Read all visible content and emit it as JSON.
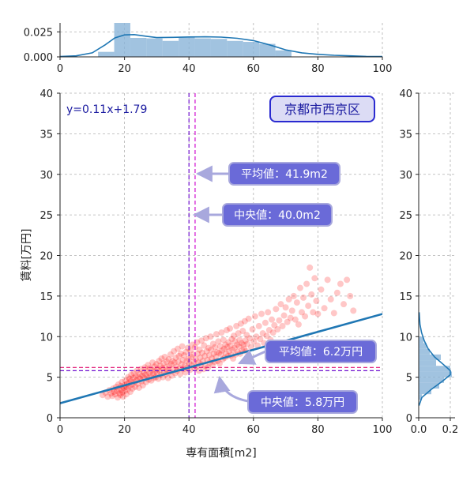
{
  "chart_data": {
    "type": "scatter",
    "title": "京都市西京区",
    "xlabel": "専有面積[m2]",
    "ylabel": "賃料[万円]",
    "xlim": [
      0,
      100
    ],
    "ylim": [
      0,
      40
    ],
    "xticks": [
      "0",
      "20",
      "40",
      "60",
      "80",
      "100"
    ],
    "yticks": [
      "0",
      "5",
      "10",
      "15",
      "20",
      "25",
      "30",
      "35",
      "40"
    ],
    "grid": true,
    "regression": {
      "label": "y=0.11x+1.79",
      "slope": 0.11,
      "intercept": 1.79,
      "color": "#1f77b4"
    },
    "mean_x": {
      "value": 41.9,
      "label": "平均値：41.9m2"
    },
    "median_x": {
      "value": 40.0,
      "label": "中央値：40.0m2"
    },
    "mean_y": {
      "value": 6.2,
      "label": "平均値：6.2万円"
    },
    "median_y": {
      "value": 5.8,
      "label": "中央値：5.8万円"
    },
    "point_color": "#ff0000",
    "top_hist": {
      "yticks": [
        "0.000",
        "0.025"
      ],
      "ylim": [
        0,
        0.034
      ],
      "bins": [
        {
          "x0": 11.8,
          "x1": 16.8,
          "density": 0.005
        },
        {
          "x0": 16.8,
          "x1": 21.8,
          "density": 0.034
        },
        {
          "x0": 21.8,
          "x1": 26.8,
          "density": 0.019
        },
        {
          "x0": 26.8,
          "x1": 31.8,
          "density": 0.0185
        },
        {
          "x0": 31.8,
          "x1": 36.8,
          "density": 0.016
        },
        {
          "x0": 36.8,
          "x1": 41.8,
          "density": 0.0198
        },
        {
          "x0": 41.8,
          "x1": 46.8,
          "density": 0.0185
        },
        {
          "x0": 46.8,
          "x1": 51.8,
          "density": 0.018
        },
        {
          "x0": 51.8,
          "x1": 56.8,
          "density": 0.016
        },
        {
          "x0": 56.8,
          "x1": 61.8,
          "density": 0.015
        },
        {
          "x0": 61.8,
          "x1": 66.8,
          "density": 0.013
        },
        {
          "x0": 66.8,
          "x1": 71.8,
          "density": 0.0065
        }
      ],
      "kde": [
        [
          0,
          0.0003
        ],
        [
          5,
          0.001
        ],
        [
          10,
          0.004
        ],
        [
          14,
          0.012
        ],
        [
          17,
          0.019
        ],
        [
          20,
          0.022
        ],
        [
          23,
          0.0223
        ],
        [
          27,
          0.0205
        ],
        [
          30,
          0.0193
        ],
        [
          35,
          0.0195
        ],
        [
          40,
          0.0199
        ],
        [
          45,
          0.0201
        ],
        [
          50,
          0.0198
        ],
        [
          55,
          0.0186
        ],
        [
          60,
          0.0163
        ],
        [
          65,
          0.012
        ],
        [
          70,
          0.007
        ],
        [
          75,
          0.004
        ],
        [
          80,
          0.0025
        ],
        [
          85,
          0.0016
        ],
        [
          90,
          0.001
        ],
        [
          95,
          0.0005
        ],
        [
          100,
          0.0003
        ]
      ]
    },
    "right_hist": {
      "xticks": [
        "0.0",
        "0.2"
      ],
      "xlim": [
        0,
        0.23
      ],
      "bins": [
        {
          "y0": 2.2,
          "y1": 2.9,
          "density": 0.02
        },
        {
          "y0": 2.9,
          "y1": 3.6,
          "density": 0.08
        },
        {
          "y0": 3.6,
          "y1": 4.3,
          "density": 0.13
        },
        {
          "y0": 4.3,
          "y1": 5.0,
          "density": 0.16
        },
        {
          "y0": 5.0,
          "y1": 5.7,
          "density": 0.21
        },
        {
          "y0": 5.7,
          "y1": 6.4,
          "density": 0.2
        },
        {
          "y0": 6.4,
          "y1": 7.1,
          "density": 0.11
        },
        {
          "y0": 7.1,
          "y1": 7.8,
          "density": 0.14
        },
        {
          "y0": 7.8,
          "y1": 8.5,
          "density": 0.07
        },
        {
          "y0": 8.5,
          "y1": 9.2,
          "density": 0.05
        },
        {
          "y0": 9.2,
          "y1": 10.0,
          "density": 0.03
        }
      ],
      "kde": [
        [
          1.5,
          0.002
        ],
        [
          2.5,
          0.02
        ],
        [
          3.5,
          0.08
        ],
        [
          4.5,
          0.15
        ],
        [
          5.3,
          0.2
        ],
        [
          5.8,
          0.2
        ],
        [
          6.5,
          0.16
        ],
        [
          7.5,
          0.1
        ],
        [
          8.5,
          0.06
        ],
        [
          9.5,
          0.035
        ],
        [
          10.5,
          0.018
        ],
        [
          11.5,
          0.008
        ],
        [
          13,
          0.003
        ]
      ]
    },
    "points": [
      [
        13.2,
        2.8
      ],
      [
        14.1,
        3.1
      ],
      [
        14.8,
        2.6
      ],
      [
        15.3,
        3.4
      ],
      [
        15.8,
        3.0
      ],
      [
        16.2,
        2.7
      ],
      [
        16.5,
        3.6
      ],
      [
        16.8,
        3.2
      ],
      [
        17.1,
        2.9
      ],
      [
        17.4,
        3.8
      ],
      [
        17.6,
        3.3
      ],
      [
        17.9,
        2.5
      ],
      [
        18.1,
        4.1
      ],
      [
        18.3,
        3.5
      ],
      [
        18.5,
        3.0
      ],
      [
        18.7,
        2.8
      ],
      [
        18.9,
        3.9
      ],
      [
        19.1,
        3.4
      ],
      [
        19.2,
        4.4
      ],
      [
        19.4,
        3.1
      ],
      [
        19.6,
        2.6
      ],
      [
        19.8,
        3.7
      ],
      [
        20.0,
        4.0
      ],
      [
        20.1,
        3.3
      ],
      [
        20.3,
        4.6
      ],
      [
        20.5,
        3.8
      ],
      [
        20.6,
        2.9
      ],
      [
        20.8,
        4.2
      ],
      [
        21.0,
        3.5
      ],
      [
        21.1,
        5.0
      ],
      [
        21.3,
        4.3
      ],
      [
        21.5,
        3.9
      ],
      [
        21.6,
        4.8
      ],
      [
        21.8,
        3.2
      ],
      [
        22.0,
        4.5
      ],
      [
        22.1,
        5.3
      ],
      [
        22.3,
        4.1
      ],
      [
        22.5,
        3.6
      ],
      [
        22.7,
        4.9
      ],
      [
        22.9,
        5.5
      ],
      [
        23.1,
        4.4
      ],
      [
        23.3,
        3.8
      ],
      [
        23.5,
        5.1
      ],
      [
        23.7,
        4.6
      ],
      [
        23.9,
        5.8
      ],
      [
        24.1,
        4.2
      ],
      [
        24.3,
        5.0
      ],
      [
        24.5,
        3.7
      ],
      [
        24.7,
        5.4
      ],
      [
        24.9,
        4.8
      ],
      [
        25.1,
        6.0
      ],
      [
        25.3,
        4.5
      ],
      [
        25.5,
        5.2
      ],
      [
        25.7,
        4.0
      ],
      [
        25.9,
        5.6
      ],
      [
        26.1,
        4.9
      ],
      [
        26.3,
        6.2
      ],
      [
        26.5,
        5.3
      ],
      [
        26.7,
        4.4
      ],
      [
        26.9,
        5.8
      ],
      [
        27.1,
        5.0
      ],
      [
        27.3,
        6.5
      ],
      [
        27.5,
        4.7
      ],
      [
        27.7,
        5.5
      ],
      [
        27.9,
        6.1
      ],
      [
        28.1,
        5.2
      ],
      [
        28.3,
        4.6
      ],
      [
        28.5,
        5.9
      ],
      [
        28.7,
        6.8
      ],
      [
        28.9,
        5.4
      ],
      [
        29.1,
        4.9
      ],
      [
        29.3,
        6.3
      ],
      [
        29.5,
        5.7
      ],
      [
        29.7,
        5.0
      ],
      [
        29.9,
        6.6
      ],
      [
        30.1,
        5.5
      ],
      [
        30.3,
        6.0
      ],
      [
        30.5,
        4.8
      ],
      [
        30.7,
        7.0
      ],
      [
        30.9,
        5.8
      ],
      [
        31.1,
        6.4
      ],
      [
        31.3,
        5.3
      ],
      [
        31.5,
        7.3
      ],
      [
        31.7,
        6.1
      ],
      [
        31.9,
        5.0
      ],
      [
        32.1,
        6.7
      ],
      [
        32.3,
        5.6
      ],
      [
        32.5,
        7.5
      ],
      [
        32.7,
        6.2
      ],
      [
        32.9,
        5.4
      ],
      [
        33.1,
        6.9
      ],
      [
        33.3,
        5.9
      ],
      [
        33.5,
        4.9
      ],
      [
        33.7,
        7.2
      ],
      [
        33.9,
        6.4
      ],
      [
        34.1,
        5.7
      ],
      [
        34.3,
        7.8
      ],
      [
        34.5,
        6.6
      ],
      [
        34.7,
        5.2
      ],
      [
        34.9,
        7.0
      ],
      [
        35.1,
        6.0
      ],
      [
        35.3,
        8.2
      ],
      [
        35.5,
        6.8
      ],
      [
        35.7,
        5.5
      ],
      [
        35.9,
        7.4
      ],
      [
        36.1,
        6.3
      ],
      [
        36.3,
        5.8
      ],
      [
        36.5,
        8.5
      ],
      [
        36.7,
        6.9
      ],
      [
        36.9,
        7.6
      ],
      [
        37.1,
        6.1
      ],
      [
        37.3,
        5.4
      ],
      [
        37.5,
        7.9
      ],
      [
        37.7,
        6.6
      ],
      [
        37.9,
        8.8
      ],
      [
        38.1,
        7.1
      ],
      [
        38.3,
        6.0
      ],
      [
        38.5,
        7.7
      ],
      [
        38.7,
        6.4
      ],
      [
        38.9,
        5.6
      ],
      [
        39.1,
        8.1
      ],
      [
        39.3,
        7.0
      ],
      [
        39.5,
        6.2
      ],
      [
        39.7,
        8.6
      ],
      [
        39.9,
        7.3
      ],
      [
        40.1,
        6.7
      ],
      [
        40.3,
        5.9
      ],
      [
        40.5,
        8.3
      ],
      [
        40.7,
        7.5
      ],
      [
        40.9,
        6.5
      ],
      [
        41.1,
        9.0
      ],
      [
        41.3,
        7.8
      ],
      [
        41.5,
        6.9
      ],
      [
        41.7,
        6.1
      ],
      [
        41.9,
        8.7
      ],
      [
        42.1,
        7.2
      ],
      [
        42.3,
        6.3
      ],
      [
        42.5,
        9.3
      ],
      [
        42.7,
        7.9
      ],
      [
        42.9,
        6.8
      ],
      [
        43.1,
        5.8
      ],
      [
        43.3,
        8.4
      ],
      [
        43.5,
        7.4
      ],
      [
        43.7,
        6.6
      ],
      [
        43.9,
        9.5
      ],
      [
        44.1,
        8.0
      ],
      [
        44.3,
        7.0
      ],
      [
        44.5,
        6.0
      ],
      [
        44.7,
        8.9
      ],
      [
        44.9,
        7.6
      ],
      [
        45.1,
        6.4
      ],
      [
        45.3,
        9.8
      ],
      [
        45.5,
        8.2
      ],
      [
        45.7,
        7.1
      ],
      [
        45.9,
        6.2
      ],
      [
        46.1,
        8.6
      ],
      [
        46.3,
        7.7
      ],
      [
        46.5,
        6.8
      ],
      [
        46.7,
        10.0
      ],
      [
        46.9,
        8.4
      ],
      [
        47.1,
        7.3
      ],
      [
        47.3,
        6.5
      ],
      [
        47.5,
        9.1
      ],
      [
        47.7,
        7.9
      ],
      [
        47.9,
        6.9
      ],
      [
        48.1,
        8.7
      ],
      [
        48.3,
        7.5
      ],
      [
        48.5,
        10.3
      ],
      [
        48.7,
        8.1
      ],
      [
        48.9,
        7.0
      ],
      [
        49.1,
        9.4
      ],
      [
        49.3,
        8.0
      ],
      [
        49.5,
        6.7
      ],
      [
        49.7,
        8.8
      ],
      [
        49.9,
        7.8
      ],
      [
        50.1,
        10.5
      ],
      [
        50.3,
        8.3
      ],
      [
        50.5,
        7.2
      ],
      [
        50.7,
        9.6
      ],
      [
        50.9,
        8.5
      ],
      [
        51.1,
        7.4
      ],
      [
        51.3,
        9.0
      ],
      [
        51.5,
        7.9
      ],
      [
        51.7,
        10.8
      ],
      [
        51.9,
        8.7
      ],
      [
        52.1,
        7.6
      ],
      [
        52.3,
        9.3
      ],
      [
        52.5,
        8.2
      ],
      [
        52.7,
        11.0
      ],
      [
        52.9,
        8.9
      ],
      [
        53.1,
        7.7
      ],
      [
        53.3,
        9.7
      ],
      [
        53.5,
        8.4
      ],
      [
        53.7,
        7.3
      ],
      [
        53.9,
        10.1
      ],
      [
        54.1,
        8.6
      ],
      [
        54.3,
        9.4
      ],
      [
        54.5,
        7.8
      ],
      [
        54.7,
        11.3
      ],
      [
        54.9,
        9.0
      ],
      [
        55.1,
        8.1
      ],
      [
        55.3,
        10.4
      ],
      [
        55.5,
        8.8
      ],
      [
        55.7,
        9.6
      ],
      [
        55.9,
        7.9
      ],
      [
        56.1,
        11.6
      ],
      [
        56.3,
        9.2
      ],
      [
        56.5,
        8.3
      ],
      [
        56.7,
        10.7
      ],
      [
        56.9,
        9.0
      ],
      [
        57.1,
        8.5
      ],
      [
        57.3,
        11.9
      ],
      [
        57.5,
        9.5
      ],
      [
        57.7,
        8.2
      ],
      [
        57.9,
        10.2
      ],
      [
        58.1,
        9.1
      ],
      [
        58.5,
        12.2
      ],
      [
        58.9,
        9.8
      ],
      [
        59.3,
        8.7
      ],
      [
        59.7,
        10.9
      ],
      [
        60.1,
        9.4
      ],
      [
        60.5,
        12.5
      ],
      [
        60.9,
        10.0
      ],
      [
        61.3,
        8.9
      ],
      [
        61.7,
        11.3
      ],
      [
        62.1,
        9.7
      ],
      [
        62.5,
        12.8
      ],
      [
        62.9,
        10.4
      ],
      [
        63.3,
        9.2
      ],
      [
        63.7,
        11.7
      ],
      [
        64.1,
        10.1
      ],
      [
        64.5,
        13.0
      ],
      [
        64.9,
        10.8
      ],
      [
        65.3,
        9.6
      ],
      [
        65.7,
        12.1
      ],
      [
        66.1,
        10.5
      ],
      [
        66.5,
        11.4
      ],
      [
        67.0,
        13.4
      ],
      [
        67.5,
        10.9
      ],
      [
        68.0,
        12.0
      ],
      [
        68.5,
        14.0
      ],
      [
        69.0,
        11.3
      ],
      [
        69.5,
        12.6
      ],
      [
        70.0,
        13.6
      ],
      [
        70.5,
        11.8
      ],
      [
        71.0,
        14.6
      ],
      [
        71.5,
        12.3
      ],
      [
        72.0,
        13.2
      ],
      [
        72.5,
        15.0
      ],
      [
        73.0,
        12.1
      ],
      [
        73.5,
        14.2
      ],
      [
        74.0,
        11.5
      ],
      [
        74.5,
        16.0
      ],
      [
        75.0,
        13.0
      ],
      [
        75.5,
        14.8
      ],
      [
        76.0,
        12.5
      ],
      [
        76.5,
        16.5
      ],
      [
        77.0,
        13.8
      ],
      [
        77.5,
        18.5
      ],
      [
        78.0,
        15.2
      ],
      [
        78.5,
        13.0
      ],
      [
        79.0,
        17.2
      ],
      [
        79.5,
        14.4
      ],
      [
        80.0,
        12.8
      ],
      [
        81.0,
        15.8
      ],
      [
        82.0,
        13.5
      ],
      [
        83.0,
        17.0
      ],
      [
        84.0,
        14.6
      ],
      [
        85.0,
        12.9
      ],
      [
        86.0,
        15.4
      ],
      [
        87.0,
        16.5
      ],
      [
        88.0,
        14.0
      ],
      [
        89.0,
        17.0
      ],
      [
        90.0,
        15.0
      ],
      [
        91.0,
        13.2
      ]
    ]
  }
}
